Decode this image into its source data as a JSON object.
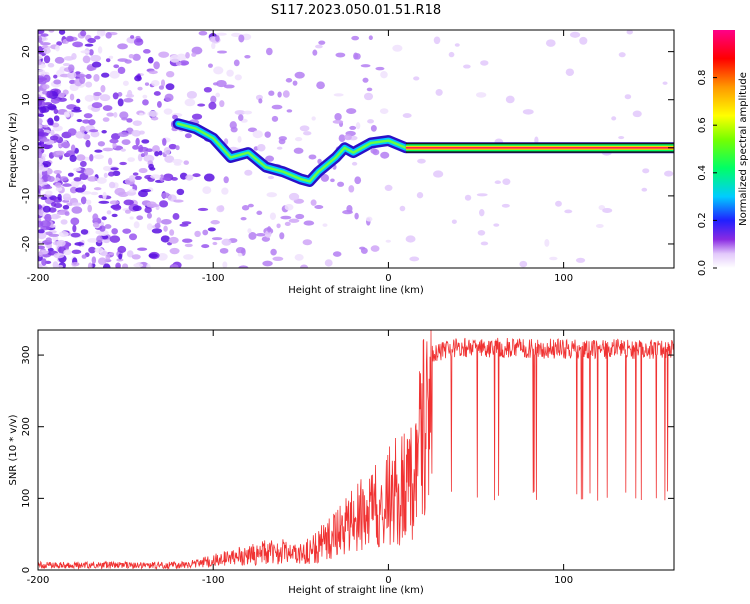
{
  "title": "S117.2023.050.01.51.R18",
  "colors": {
    "snr_line": "#f03232",
    "tone_line": "#1a1a1a",
    "axis": "#000000"
  },
  "chart_data": [
    {
      "type": "heatmap",
      "xlabel": "Height of straight line (km)",
      "ylabel": "Frequency (Hz)",
      "xlim": [
        -200,
        163
      ],
      "ylim": [
        -25,
        24.5
      ],
      "xticks": [
        -200,
        -100,
        0,
        100
      ],
      "yticks": [
        -20,
        -10,
        0,
        10,
        20
      ],
      "colormap": "rainbow",
      "colorbar": {
        "label": "Normalized spectral amplitude",
        "ticks": [
          0.0,
          0.2,
          0.4,
          0.6,
          0.8
        ],
        "range": [
          0,
          1
        ]
      },
      "signal_track": {
        "x": [
          -120,
          -110,
          -100,
          -90,
          -80,
          -70,
          -60,
          -50,
          -45,
          -40,
          -30,
          -25,
          -20,
          -10,
          0,
          10,
          50,
          100,
          163
        ],
        "freq": [
          5,
          4,
          2,
          -2,
          -1,
          -4,
          -5,
          -6.5,
          -7,
          -5,
          -2,
          0,
          -1,
          1,
          1.5,
          0,
          0,
          0,
          0
        ]
      }
    },
    {
      "type": "line",
      "xlabel": "Height of straight line (km)",
      "ylabel": "SNR (10 * v/v)",
      "xlim": [
        -200,
        163
      ],
      "ylim": [
        0,
        335
      ],
      "xticks": [
        -200,
        -100,
        0,
        100
      ],
      "yticks": [
        0,
        100,
        200,
        300
      ],
      "series": [
        {
          "x": [
            -200,
            -180,
            -160,
            -140,
            -120,
            -110,
            -100,
            -90,
            -80,
            -70,
            -60,
            -50,
            -40,
            -30,
            -20,
            -10,
            0,
            10,
            15,
            20,
            25,
            30,
            40,
            60,
            80,
            100,
            120,
            140,
            163
          ],
          "values": [
            8,
            8,
            8,
            8,
            8,
            10,
            15,
            20,
            25,
            30,
            30,
            25,
            40,
            60,
            80,
            100,
            120,
            140,
            160,
            230,
            300,
            305,
            310,
            310,
            310,
            308,
            308,
            308,
            308
          ]
        }
      ]
    }
  ]
}
